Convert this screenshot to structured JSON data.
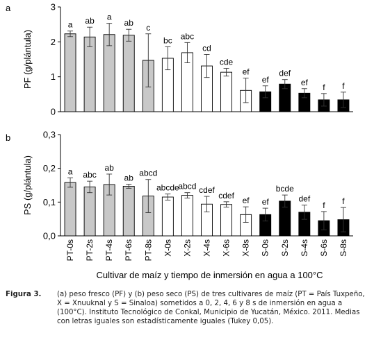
{
  "figure": {
    "caption_label": "Figura 3.",
    "caption_text": "(a) peso fresco (PF) y (b) peso seco (PS) de tres cultivares de maíz (PT = País Tuxpeño, X = Xnuuknal y S = Sinaloa) sometidos a 0, 2, 4, 6 y 8 s de inmersión en agua a (100°C). Instituto Tecnológico de Conkal, Municipio de Yucatán, México. 2011. Medias con letras iguales son estadísticamente iguales (Tukey 0,05)."
  },
  "colors": {
    "PT": "#c8c8c8",
    "X": "#ffffff",
    "S": "#000000"
  },
  "chart_data": [
    {
      "panel_label": "a",
      "type": "bar",
      "ylabel": "PF (g/plántula)",
      "xlabel": "",
      "ylim": [
        0,
        3
      ],
      "yticks": [
        "0",
        "1",
        "2",
        "3"
      ],
      "grid": false,
      "categories": [
        "PT-0s",
        "PT-2s",
        "PT-4s",
        "PT-6s",
        "PT-8s",
        "X-0s",
        "X-2s",
        "X-4s",
        "X-6s",
        "X-8s",
        "S-0s",
        "S-2s",
        "S-4s",
        "S-6s",
        "S-8s"
      ],
      "groups": [
        "PT",
        "PT",
        "PT",
        "PT",
        "PT",
        "X",
        "X",
        "X",
        "X",
        "X",
        "S",
        "S",
        "S",
        "S",
        "S"
      ],
      "values": [
        2.23,
        2.14,
        2.21,
        2.19,
        1.47,
        1.53,
        1.69,
        1.31,
        1.13,
        0.61,
        0.57,
        0.79,
        0.53,
        0.34,
        0.34
      ],
      "errors": [
        0.08,
        0.28,
        0.32,
        0.17,
        0.76,
        0.33,
        0.29,
        0.33,
        0.11,
        0.35,
        0.17,
        0.13,
        0.13,
        0.18,
        0.22
      ],
      "letters": [
        "a",
        "ab",
        "a",
        "ab",
        "c",
        "bc",
        "abc",
        "cd",
        "cde",
        "ef",
        "ef",
        "def",
        "ef",
        "f",
        "f"
      ]
    },
    {
      "panel_label": "b",
      "type": "bar",
      "ylabel": "PS (g/plántula)",
      "xlabel": "Cultivar de maíz y tiempo de inmersión en agua a 100°C",
      "ylim": [
        0,
        0.3
      ],
      "yticks": [
        "0,0",
        "0,1",
        "0,2",
        "0,3"
      ],
      "grid": false,
      "categories": [
        "PT-0s",
        "PT-2s",
        "PT-4s",
        "PT-6s",
        "PT-8s",
        "X-0s",
        "X-2s",
        "X-4s",
        "X-6s",
        "X-8s",
        "S-0s",
        "S-2s",
        "S-4s",
        "S-6s",
        "S-8s"
      ],
      "groups": [
        "PT",
        "PT",
        "PT",
        "PT",
        "PT",
        "X",
        "X",
        "X",
        "X",
        "X",
        "S",
        "S",
        "S",
        "S",
        "S"
      ],
      "values": [
        0.158,
        0.145,
        0.152,
        0.147,
        0.118,
        0.115,
        0.12,
        0.094,
        0.093,
        0.063,
        0.063,
        0.103,
        0.07,
        0.045,
        0.048
      ],
      "errors": [
        0.014,
        0.017,
        0.031,
        0.006,
        0.049,
        0.009,
        0.008,
        0.023,
        0.008,
        0.023,
        0.019,
        0.018,
        0.021,
        0.027,
        0.036
      ],
      "letters": [
        "a",
        "abc",
        "ab",
        "ab",
        "abcd",
        "abcde",
        "abcd",
        "cdef",
        "cdef",
        "ef",
        "ef",
        "bcde",
        "def",
        "f",
        "f"
      ]
    }
  ]
}
